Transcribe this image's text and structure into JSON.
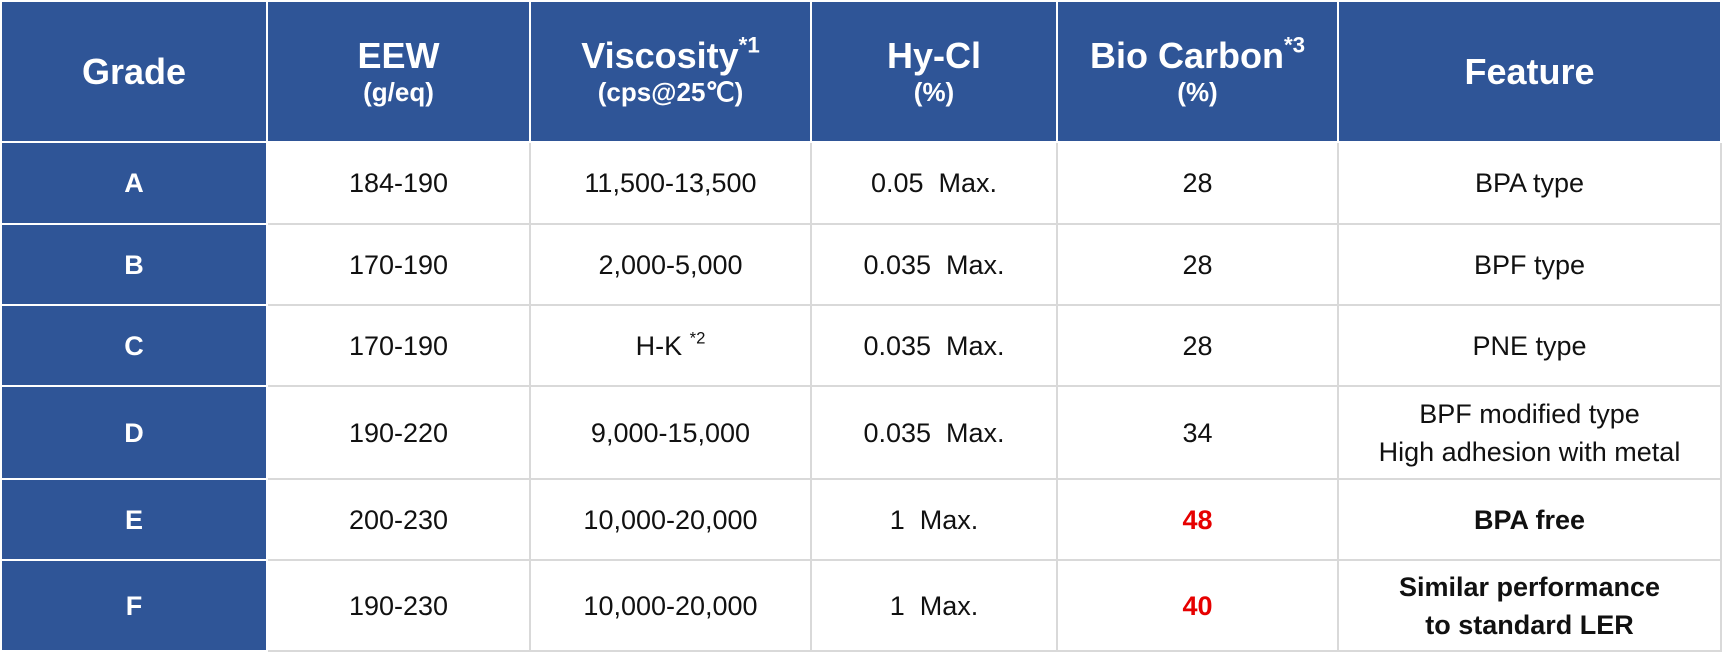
{
  "table": {
    "header": [
      {
        "title": "Grade"
      },
      {
        "title": "EEW",
        "unit": "(g/eq)"
      },
      {
        "title": "Viscosity",
        "sup": "*1",
        "unit": "(cps@25℃)"
      },
      {
        "title": "Hy-Cl",
        "unit": "(%)"
      },
      {
        "title": "Bio Carbon",
        "sup": "*3",
        "unit": "(%)"
      },
      {
        "title": "Feature"
      }
    ],
    "rows": [
      [
        "A",
        "184-190",
        {
          "text": "11,500-13,500"
        },
        "0.05  Max.",
        28,
        [
          "BPA type"
        ]
      ],
      [
        "B",
        "170-190",
        {
          "text": "2,000-5,000"
        },
        "0.035  Max.",
        28,
        [
          "BPF type"
        ]
      ],
      [
        "C",
        "170-190",
        {
          "text": "H-K ",
          "sup": "*2"
        },
        "0.035  Max.",
        28,
        [
          "PNE type"
        ]
      ],
      [
        "D",
        "190-220",
        {
          "text": "9,000-15,000"
        },
        "0.035  Max.",
        34,
        [
          "BPF modified type",
          "High adhesion with metal"
        ]
      ],
      [
        "E",
        "200-230",
        {
          "text": "10,000-20,000"
        },
        "1  Max.",
        48,
        [
          "BPA free"
        ]
      ],
      [
        "F",
        "190-230",
        {
          "text": "10,000-20,000"
        },
        "1  Max.",
        40,
        [
          "Similar performance",
          "to standard LER"
        ]
      ]
    ]
  }
}
